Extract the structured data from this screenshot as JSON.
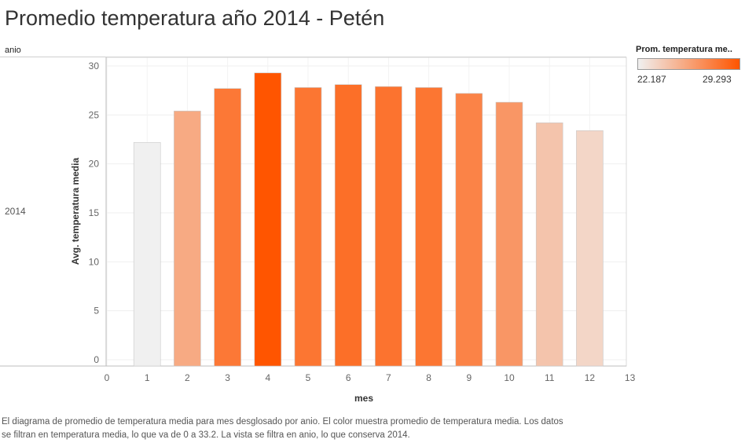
{
  "title": "Promedio temperatura año 2014 - Petén",
  "row_header": "anio",
  "row_label": "2014",
  "legend": {
    "title": "Prom. temperatura me..",
    "min_label": "22.187",
    "max_label": "29.293",
    "color_low": "#f0f0f0",
    "color_high": "#ff5500"
  },
  "caption": {
    "line1": "El diagrama de promedio de temperatura media para mes desglosado por anio.  El color muestra promedio de temperatura media. Los datos",
    "line2": "se filtran en temperatura media, lo que va de 0 a 33.2. La vista se filtra en anio, lo que conserva 2014."
  },
  "chart_data": {
    "type": "bar",
    "xlabel": "mes",
    "ylabel": "Avg. temperatura media",
    "categories": [
      1,
      2,
      3,
      4,
      5,
      6,
      7,
      8,
      9,
      10,
      11,
      12
    ],
    "values": [
      22.187,
      25.4,
      27.7,
      29.293,
      27.8,
      28.1,
      27.9,
      27.8,
      27.2,
      26.3,
      24.2,
      23.4
    ],
    "xlim": [
      0,
      13
    ],
    "ylim": [
      0,
      30
    ],
    "xticks": [
      0,
      1,
      2,
      3,
      4,
      5,
      6,
      7,
      8,
      9,
      10,
      11,
      12,
      13
    ],
    "yticks": [
      0,
      5,
      10,
      15,
      20,
      25,
      30
    ],
    "color_range": [
      22.187,
      29.293
    ],
    "grid": true,
    "legend_position": "top-right"
  }
}
